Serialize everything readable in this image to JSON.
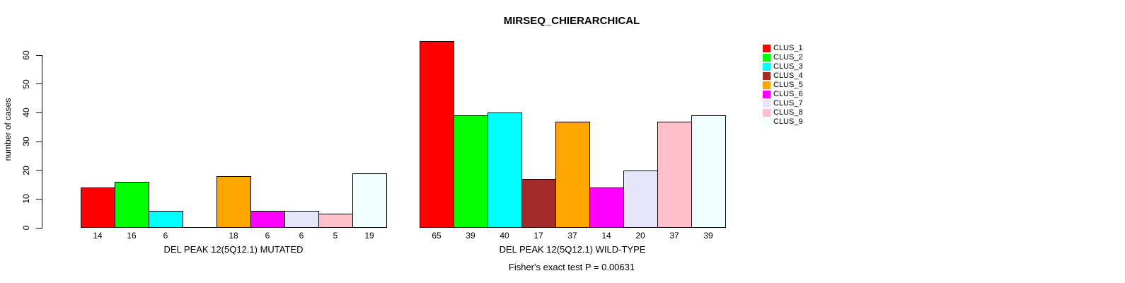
{
  "chart_data": {
    "type": "bar",
    "title": "MIRSEQ_CHIERARCHICAL",
    "ylabel": "number of cases",
    "ylim": [
      0,
      65
    ],
    "yticks": [
      0,
      10,
      20,
      30,
      40,
      50,
      60
    ],
    "grid": false,
    "legend_position": "right",
    "categories": [
      "CLUS_1",
      "CLUS_2",
      "CLUS_3",
      "CLUS_4",
      "CLUS_5",
      "CLUS_6",
      "CLUS_7",
      "CLUS_8",
      "CLUS_9"
    ],
    "colors": [
      "#FF0000",
      "#00FF00",
      "#00FFFF",
      "#A52A2A",
      "#FFA500",
      "#FF00FF",
      "#E6E6FA",
      "#FFC0CB",
      "#F0FFFF"
    ],
    "groups": [
      {
        "label": "DEL PEAK 12(5Q12.1) MUTATED",
        "values": [
          14,
          16,
          6,
          0,
          18,
          6,
          6,
          5,
          19
        ]
      },
      {
        "label": "DEL PEAK 12(5Q12.1) WILD-TYPE",
        "values": [
          65,
          39,
          40,
          17,
          37,
          14,
          20,
          37,
          39
        ]
      }
    ],
    "annotation": "Fisher's exact test P = 0.00631"
  },
  "legend": {
    "entries": [
      {
        "label": "CLUS_1",
        "color": "#FF0000"
      },
      {
        "label": "CLUS_2",
        "color": "#00FF00"
      },
      {
        "label": "CLUS_3",
        "color": "#00FFFF"
      },
      {
        "label": "CLUS_4",
        "color": "#A52A2A"
      },
      {
        "label": "CLUS_5",
        "color": "#FFA500"
      },
      {
        "label": "CLUS_6",
        "color": "#FF00FF"
      },
      {
        "label": "CLUS_7",
        "color": "#E6E6FA"
      },
      {
        "label": "CLUS_8",
        "color": "#FFC0CB"
      },
      {
        "label": "CLUS_9",
        "color": "#F0FFFF"
      }
    ]
  }
}
